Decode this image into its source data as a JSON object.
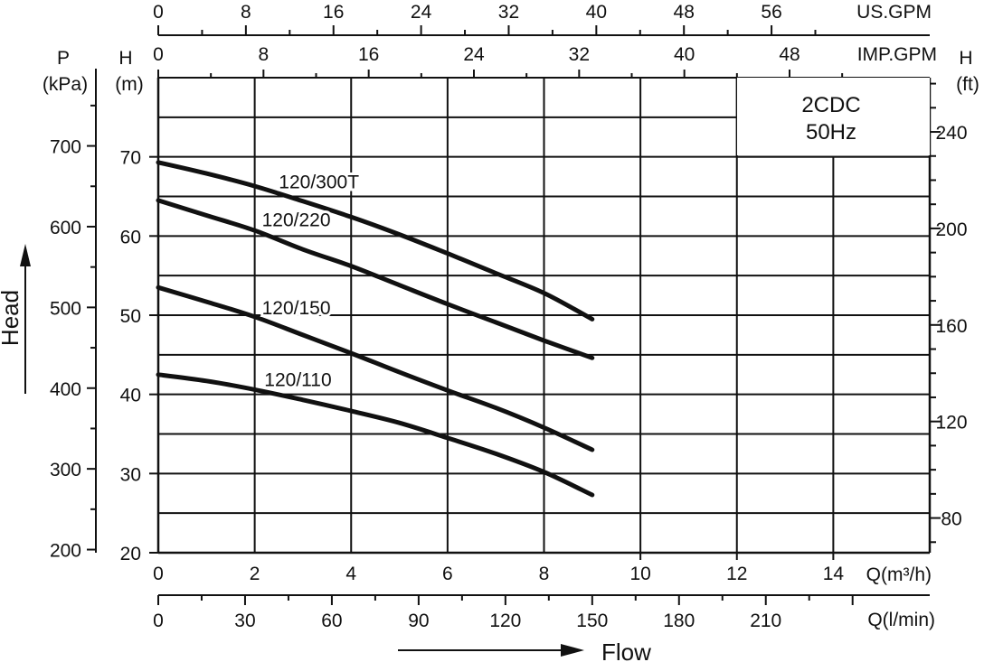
{
  "chart_data": {
    "type": "line",
    "title": "",
    "model_box": {
      "line1": "2CDC",
      "line2": "50Hz"
    },
    "xlabel": "Flow",
    "ylabel": "Head",
    "xlim": [
      0,
      16
    ],
    "ylim": [
      20,
      80
    ],
    "grid": true,
    "axes": {
      "us_gpm": {
        "label": "US.GPM",
        "ticks": [
          0,
          8,
          16,
          24,
          32,
          40,
          48,
          56
        ]
      },
      "imp_gpm": {
        "label": "IMP.GPM",
        "ticks": [
          0,
          8,
          16,
          24,
          32,
          40,
          48
        ]
      },
      "q_m3h": {
        "label": "Q(m³/h)",
        "ticks": [
          0,
          2,
          4,
          6,
          8,
          10,
          12,
          14
        ]
      },
      "q_lmin": {
        "label": "Q(l/min)",
        "ticks": [
          0,
          30,
          60,
          90,
          120,
          150,
          180,
          210
        ]
      },
      "h_m": {
        "label_top": "H",
        "label_unit": "(m)",
        "ticks": [
          20,
          30,
          40,
          50,
          60,
          70
        ]
      },
      "p_kpa": {
        "label_top": "P",
        "label_unit": "(kPa)",
        "ticks": [
          200,
          300,
          400,
          500,
          600,
          700
        ]
      },
      "h_ft": {
        "label_top": "H",
        "label_unit": "(ft)",
        "ticks": [
          80,
          120,
          160,
          200,
          240
        ]
      }
    },
    "series": [
      {
        "name": "120/300T",
        "x": [
          0,
          1,
          2,
          3,
          4,
          5,
          6,
          7,
          8,
          9
        ],
        "y": [
          69.3,
          67.9,
          66.3,
          64.4,
          62.4,
          60.2,
          57.8,
          55.3,
          52.8,
          49.5
        ]
      },
      {
        "name": "120/220",
        "x": [
          0,
          1,
          2,
          3,
          4,
          5,
          6,
          7,
          8,
          9
        ],
        "y": [
          64.5,
          62.6,
          60.7,
          58.3,
          56.2,
          53.8,
          51.4,
          49.1,
          46.8,
          44.6
        ]
      },
      {
        "name": "120/150",
        "x": [
          0,
          1,
          2,
          3,
          4,
          5,
          6,
          7,
          8,
          9
        ],
        "y": [
          53.5,
          51.7,
          49.8,
          47.5,
          45.2,
          42.8,
          40.5,
          38.3,
          35.8,
          33.0
        ]
      },
      {
        "name": "120/110",
        "x": [
          0,
          1,
          2,
          3,
          4,
          5,
          6,
          7,
          8,
          9
        ],
        "y": [
          42.5,
          41.7,
          40.6,
          39.3,
          37.9,
          36.4,
          34.5,
          32.5,
          30.2,
          27.3
        ]
      }
    ]
  }
}
